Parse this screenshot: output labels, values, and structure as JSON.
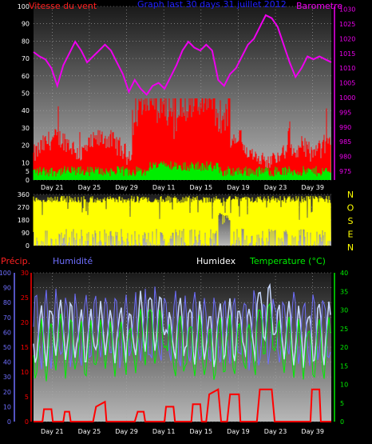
{
  "header": {
    "wind_title": "Vitesse du vent",
    "period_title": "Graph last 30 days 31 juillet 2012",
    "baro_title": "Barometre"
  },
  "precip_header": {
    "precip_label": "Précip.",
    "humidity_label": "Humidité",
    "humidex_label": "Humidex",
    "temp_label": "Temperature (°C)"
  },
  "colors": {
    "wind": "#ff0000",
    "gust_base": "#00ee00",
    "barometer": "#ee00ee",
    "direction": "#ffff00",
    "humidity": "#6f6fff",
    "humidex": "#c8d8ff",
    "temperature": "#00ee00",
    "precip": "#ff0000",
    "wind_title": "#ff2020",
    "period_title": "#2020ff",
    "baro_title": "#ee00ee",
    "precip_title": "#ff2020",
    "humidity_title": "#6f6fff",
    "humidex_title": "#ffffff",
    "temp_title": "#00ee00"
  },
  "chart_data": [
    {
      "type": "line",
      "name": "wind-baro",
      "x_ticks": [
        "Day 21",
        "Day 25",
        "Day 29",
        "Day 11",
        "Day 15",
        "Day 19",
        "Day 23",
        "Day 39"
      ],
      "left_axis": {
        "ticks": [
          0,
          5,
          10,
          20,
          30,
          40,
          50,
          60,
          70,
          80,
          90,
          100
        ],
        "ylim": [
          0,
          100
        ]
      },
      "right_axis": {
        "ticks": [
          975,
          980,
          985,
          990,
          995,
          1000,
          1005,
          1010,
          1015,
          1020,
          1025,
          1030
        ],
        "ylim": [
          972,
          1031
        ]
      },
      "barometer_points": [
        [
          0,
          1015.5
        ],
        [
          0.02,
          1014
        ],
        [
          0.04,
          1013
        ],
        [
          0.06,
          1010
        ],
        [
          0.08,
          1004
        ],
        [
          0.1,
          1011
        ],
        [
          0.12,
          1015
        ],
        [
          0.14,
          1019
        ],
        [
          0.16,
          1016
        ],
        [
          0.18,
          1012
        ],
        [
          0.2,
          1014
        ],
        [
          0.22,
          1016
        ],
        [
          0.24,
          1018
        ],
        [
          0.26,
          1016
        ],
        [
          0.28,
          1012
        ],
        [
          0.3,
          1008
        ],
        [
          0.32,
          1002
        ],
        [
          0.34,
          1006
        ],
        [
          0.36,
          1003
        ],
        [
          0.38,
          1001
        ],
        [
          0.4,
          1004
        ],
        [
          0.42,
          1005
        ],
        [
          0.44,
          1003
        ],
        [
          0.46,
          1007
        ],
        [
          0.48,
          1011
        ],
        [
          0.5,
          1016
        ],
        [
          0.52,
          1019
        ],
        [
          0.54,
          1017
        ],
        [
          0.56,
          1016
        ],
        [
          0.58,
          1018
        ],
        [
          0.6,
          1016
        ],
        [
          0.62,
          1006
        ],
        [
          0.64,
          1004
        ],
        [
          0.66,
          1008
        ],
        [
          0.68,
          1010
        ],
        [
          0.7,
          1014
        ],
        [
          0.72,
          1018
        ],
        [
          0.74,
          1020
        ],
        [
          0.76,
          1024
        ],
        [
          0.78,
          1028
        ],
        [
          0.8,
          1027
        ],
        [
          0.82,
          1024
        ],
        [
          0.84,
          1018
        ],
        [
          0.86,
          1012
        ],
        [
          0.88,
          1007
        ],
        [
          0.9,
          1010
        ],
        [
          0.92,
          1014
        ],
        [
          0.94,
          1013
        ],
        [
          0.96,
          1014
        ],
        [
          0.98,
          1013
        ],
        [
          1.0,
          1012
        ]
      ]
    },
    {
      "type": "area",
      "name": "wind-direction",
      "y_ticks": [
        0,
        90,
        180,
        270,
        360
      ],
      "ylim": [
        0,
        360
      ],
      "compass": [
        "N",
        "O",
        "S",
        "E",
        "N"
      ]
    },
    {
      "type": "line",
      "name": "humidity-temp-precip",
      "x_ticks": [
        "Day 21",
        "Day 25",
        "Day 29",
        "Day 11",
        "Day 15",
        "Day 19",
        "Day 23",
        "Day 39"
      ],
      "humidity_axis": {
        "ticks": [
          0,
          10,
          20,
          30,
          40,
          50,
          60,
          70,
          80,
          90,
          100
        ],
        "ylim": [
          0,
          100
        ]
      },
      "precip_axis": {
        "ticks": [
          0,
          5,
          10,
          15,
          20,
          25,
          30
        ],
        "ylim": [
          0,
          30
        ]
      },
      "temp_axis": {
        "ticks": [
          0,
          5,
          10,
          15,
          20,
          25,
          30,
          35,
          40
        ],
        "ylim": [
          0,
          40
        ]
      },
      "precip_points": [
        [
          0,
          0
        ],
        [
          0.03,
          0
        ],
        [
          0.035,
          2.5
        ],
        [
          0.06,
          2.5
        ],
        [
          0.065,
          0
        ],
        [
          0.1,
          0
        ],
        [
          0.105,
          2
        ],
        [
          0.12,
          2
        ],
        [
          0.125,
          0
        ],
        [
          0.2,
          0
        ],
        [
          0.21,
          3
        ],
        [
          0.24,
          4
        ],
        [
          0.245,
          0
        ],
        [
          0.34,
          0
        ],
        [
          0.35,
          2
        ],
        [
          0.37,
          2
        ],
        [
          0.375,
          0
        ],
        [
          0.44,
          0
        ],
        [
          0.445,
          3
        ],
        [
          0.47,
          3
        ],
        [
          0.475,
          0
        ],
        [
          0.53,
          0
        ],
        [
          0.535,
          3.5
        ],
        [
          0.56,
          3.5
        ],
        [
          0.565,
          0
        ],
        [
          0.58,
          0
        ],
        [
          0.59,
          5.5
        ],
        [
          0.62,
          6.5
        ],
        [
          0.63,
          0
        ],
        [
          0.65,
          0
        ],
        [
          0.66,
          5.5
        ],
        [
          0.69,
          5.5
        ],
        [
          0.695,
          0
        ],
        [
          0.75,
          0
        ],
        [
          0.76,
          6.5
        ],
        [
          0.8,
          6.5
        ],
        [
          0.81,
          0
        ],
        [
          0.93,
          0
        ],
        [
          0.935,
          6.5
        ],
        [
          0.96,
          6.5
        ],
        [
          0.965,
          0
        ],
        [
          1.0,
          0
        ]
      ]
    }
  ]
}
